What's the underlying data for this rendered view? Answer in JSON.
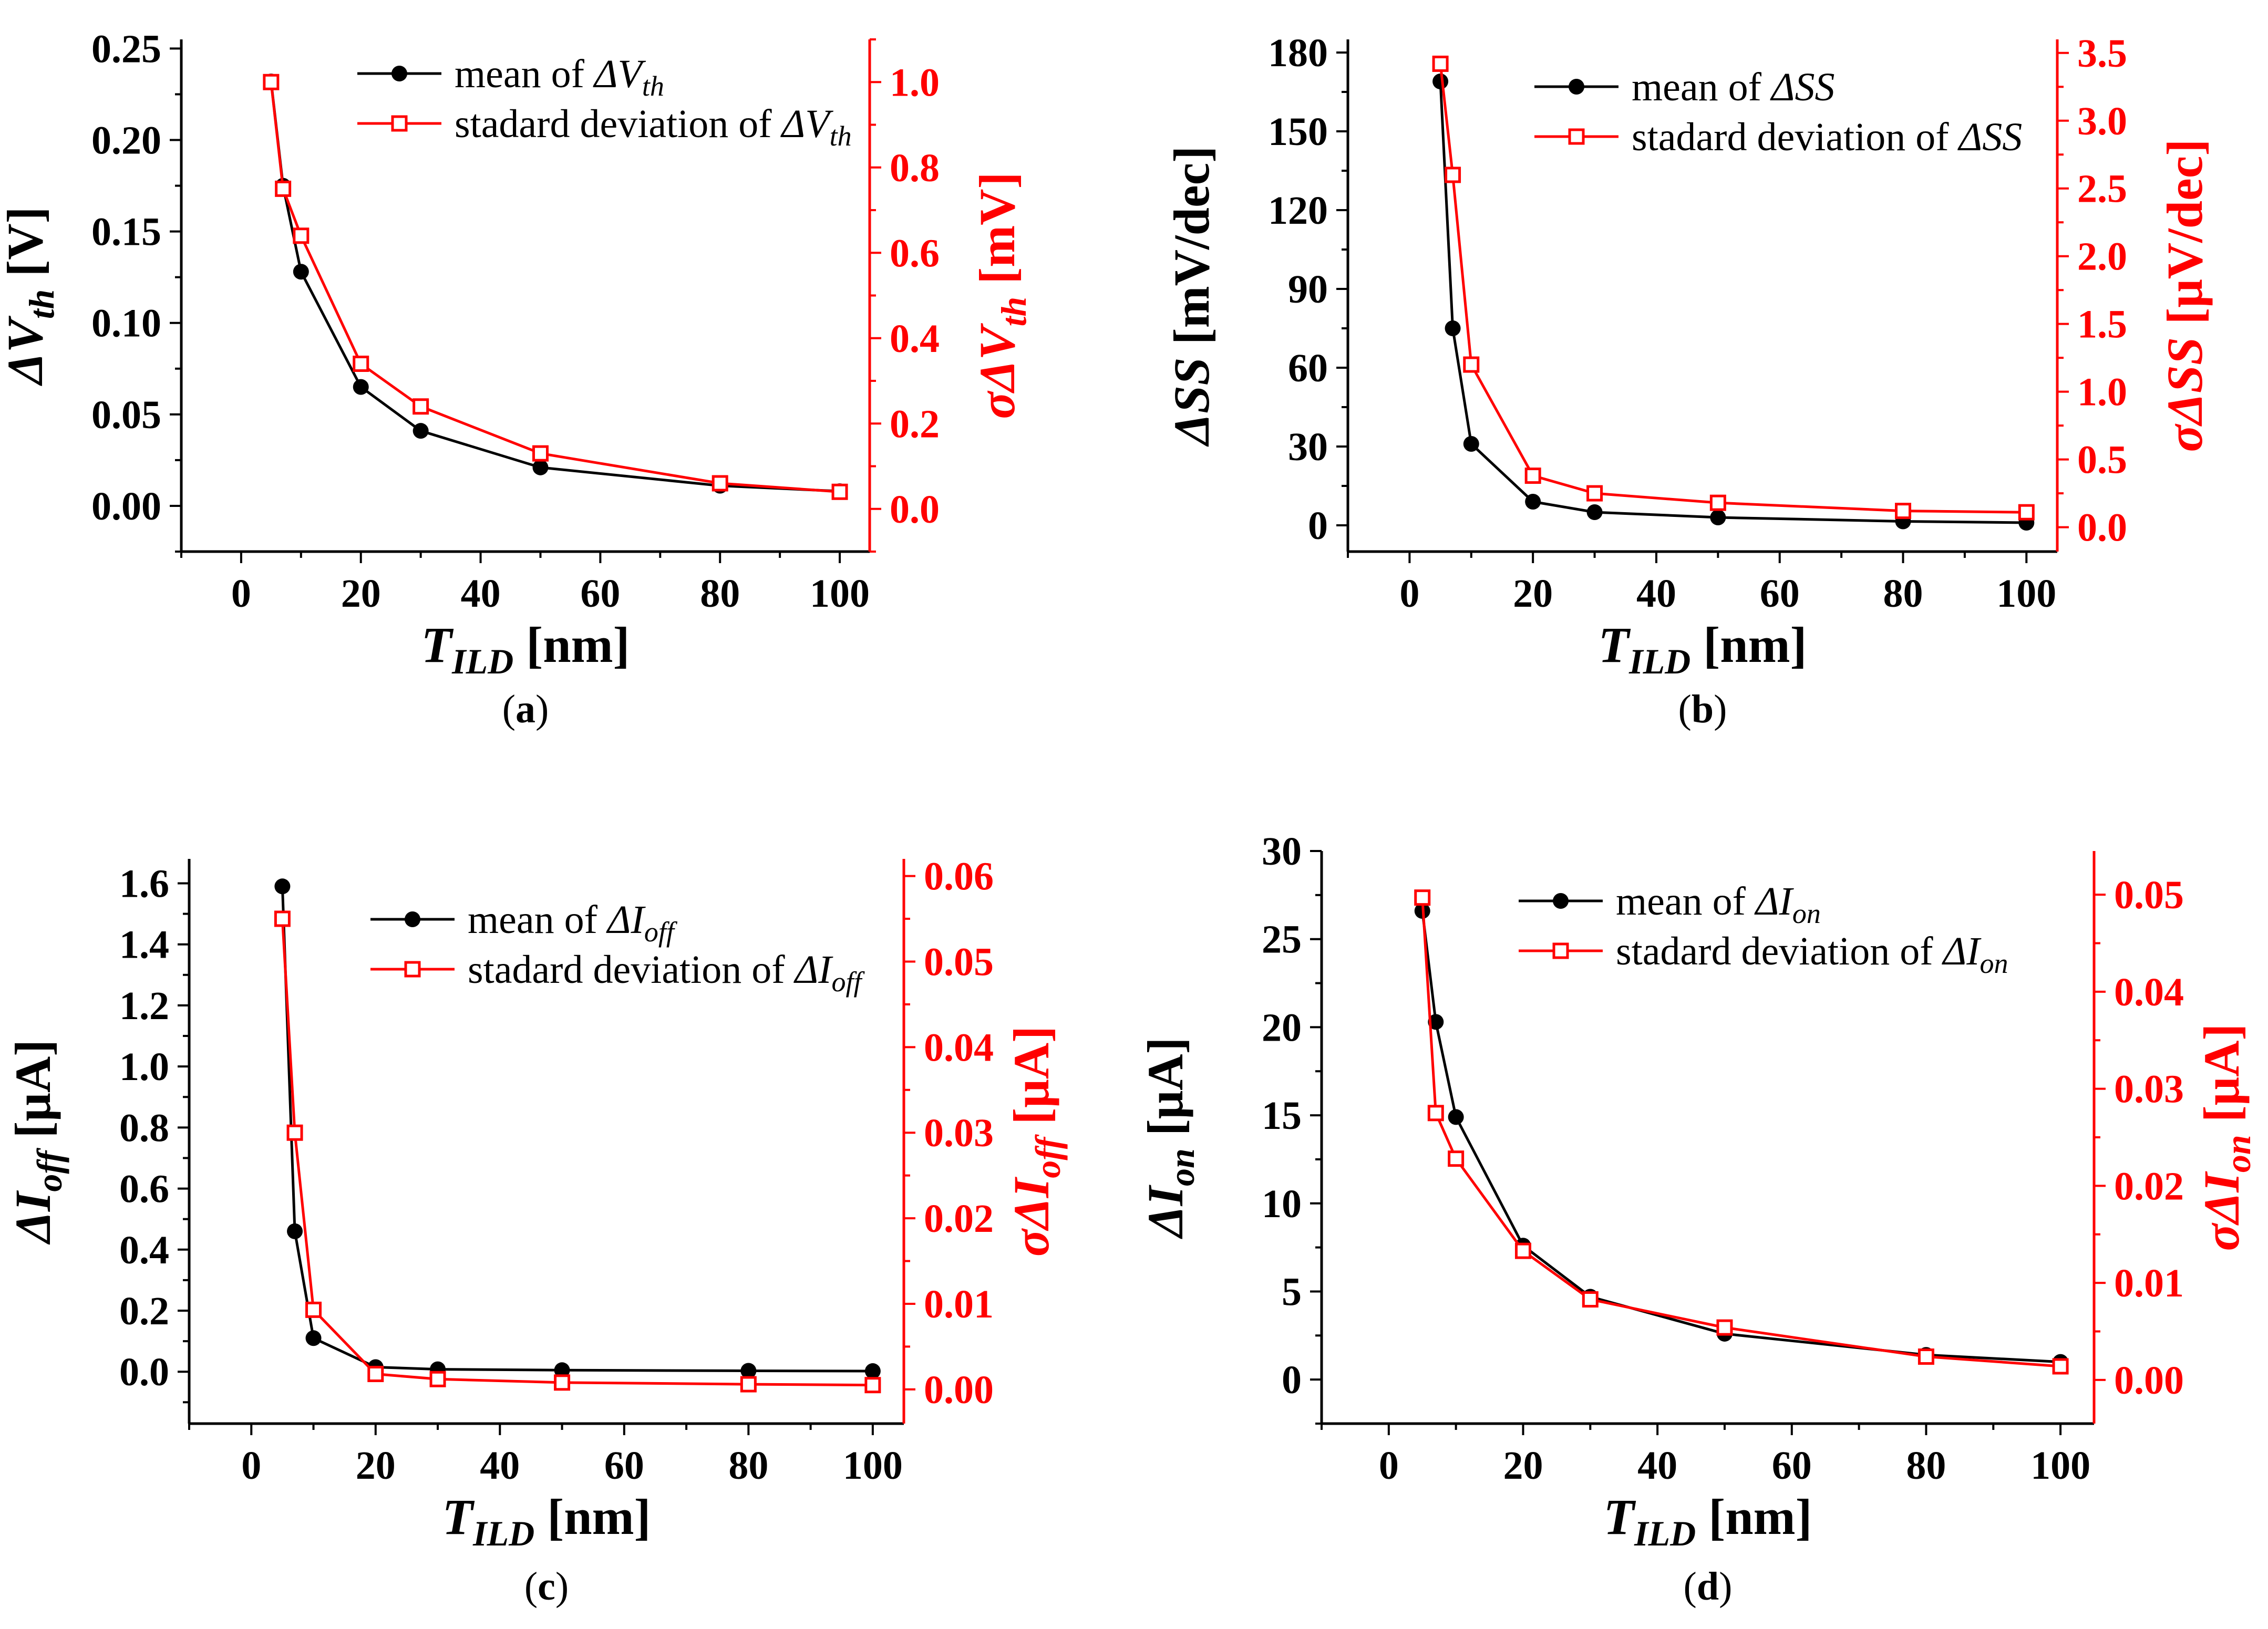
{
  "colors": {
    "left": "#000000",
    "right": "#ff0000"
  },
  "chart_data": [
    {
      "type": "line",
      "caption": "(a)",
      "x": [
        5,
        7,
        10,
        20,
        30,
        50,
        80,
        100
      ],
      "xlim": [
        -10,
        105
      ],
      "xticks": [
        "0",
        "20",
        "40",
        "60",
        "80",
        "100"
      ],
      "xlabel": {
        "main": "T",
        "sub": "ILD",
        "unit": " [nm]"
      },
      "ylabel_left": {
        "main": "ΔV",
        "sub": "th",
        "unit": " [V]"
      },
      "ylim_left": [
        -0.025,
        0.255
      ],
      "yticks_left": [
        "0.00",
        "0.05",
        "0.10",
        "0.15",
        "0.20",
        "0.25"
      ],
      "ylabel_right": {
        "main": "σΔV",
        "sub": "th",
        "unit": " [mV]"
      },
      "ylim_right": [
        -0.1,
        1.1
      ],
      "yticks_right": [
        "0.0",
        "0.2",
        "0.4",
        "0.6",
        "0.8",
        "1.0"
      ],
      "series": [
        {
          "name": "mean of ΔV",
          "sub": "th",
          "axis": "left",
          "values": [
            0.232,
            0.175,
            0.128,
            0.065,
            0.041,
            0.021,
            0.011,
            0.008
          ]
        },
        {
          "name": "stadard deviation of ΔV",
          "sub": "th",
          "axis": "right",
          "values": [
            1.0,
            0.75,
            0.64,
            0.34,
            0.24,
            0.13,
            0.06,
            0.04
          ]
        }
      ]
    },
    {
      "type": "line",
      "caption": "(b)",
      "x": [
        5,
        7,
        10,
        20,
        30,
        50,
        80,
        100
      ],
      "xlim": [
        -10,
        105
      ],
      "xticks": [
        "0",
        "20",
        "40",
        "60",
        "80",
        "100"
      ],
      "xlabel": {
        "main": "T",
        "sub": "ILD",
        "unit": " [nm]"
      },
      "ylabel_left": {
        "main": "ΔSS",
        "sub": "",
        "unit": " [mV/dec]"
      },
      "ylim_left": [
        -10,
        185
      ],
      "yticks_left": [
        "0",
        "30",
        "60",
        "90",
        "120",
        "150",
        "180"
      ],
      "ylabel_right": {
        "main": "σΔSS",
        "sub": "",
        "unit": " [μV/dec]"
      },
      "ylim_right": [
        -0.18,
        3.6
      ],
      "yticks_right": [
        "0.0",
        "0.5",
        "1.0",
        "1.5",
        "2.0",
        "2.5",
        "3.0",
        "3.5"
      ],
      "series": [
        {
          "name": "mean of ΔSS",
          "sub": "",
          "axis": "left",
          "values": [
            169,
            75,
            31,
            9,
            5,
            3,
            1.5,
            1
          ]
        },
        {
          "name": "stadard deviation of ΔSS",
          "sub": "",
          "axis": "right",
          "values": [
            3.42,
            2.6,
            1.2,
            0.38,
            0.25,
            0.18,
            0.12,
            0.11
          ]
        }
      ]
    },
    {
      "type": "line",
      "caption": "(c)",
      "x": [
        5,
        7,
        10,
        20,
        30,
        50,
        80,
        100
      ],
      "xlim": [
        -10,
        105
      ],
      "xticks": [
        "0",
        "20",
        "40",
        "60",
        "80",
        "100"
      ],
      "xlabel": {
        "main": "T",
        "sub": "ILD",
        "unit": " [nm]"
      },
      "ylabel_left": {
        "main": "ΔI",
        "sub": "off",
        "unit": " [μA]"
      },
      "ylim_left": [
        -0.17,
        1.68
      ],
      "yticks_left": [
        "0.0",
        "0.2",
        "0.4",
        "0.6",
        "0.8",
        "1.0",
        "1.2",
        "1.4",
        "1.6"
      ],
      "ylabel_right": {
        "main": "σΔI",
        "sub": "off",
        "unit": " [μA]"
      },
      "ylim_right": [
        -0.004,
        0.062
      ],
      "yticks_right": [
        "0.00",
        "0.01",
        "0.02",
        "0.03",
        "0.04",
        "0.05",
        "0.06"
      ],
      "series": [
        {
          "name": "mean of ΔI",
          "sub": "off",
          "axis": "left",
          "values": [
            1.59,
            0.46,
            0.11,
            0.015,
            0.008,
            0.005,
            0.003,
            0.002
          ]
        },
        {
          "name": "stadard deviation of ΔI",
          "sub": "off",
          "axis": "right",
          "values": [
            0.055,
            0.03,
            0.0093,
            0.0018,
            0.0012,
            0.0008,
            0.0006,
            0.0005
          ]
        }
      ]
    },
    {
      "type": "line",
      "caption": "(d)",
      "x": [
        5,
        7,
        10,
        20,
        30,
        50,
        80,
        100
      ],
      "xlim": [
        -10,
        105
      ],
      "xticks": [
        "0",
        "20",
        "40",
        "60",
        "80",
        "100"
      ],
      "xlabel": {
        "main": "T",
        "sub": "ILD",
        "unit": " [nm]"
      },
      "ylabel_left": {
        "main": "ΔI",
        "sub": "on",
        "unit": " [μA]"
      },
      "ylim_left": [
        -2.5,
        30
      ],
      "yticks_left": [
        "0",
        "5",
        "10",
        "15",
        "20",
        "25",
        "30"
      ],
      "ylabel_right": {
        "main": "σΔI",
        "sub": "on",
        "unit": " [μA]"
      },
      "ylim_right": [
        -0.0045,
        0.0545
      ],
      "yticks_right": [
        "0.00",
        "0.01",
        "0.02",
        "0.03",
        "0.04",
        "0.05"
      ],
      "series": [
        {
          "name": "mean of ΔI",
          "sub": "on",
          "axis": "left",
          "values": [
            26.6,
            20.3,
            14.9,
            7.6,
            4.7,
            2.6,
            1.4,
            1.0
          ]
        },
        {
          "name": "stadard deviation of ΔI",
          "sub": "on",
          "axis": "right",
          "values": [
            0.0497,
            0.0275,
            0.0228,
            0.0133,
            0.0083,
            0.0054,
            0.0024,
            0.0014
          ]
        }
      ]
    }
  ]
}
